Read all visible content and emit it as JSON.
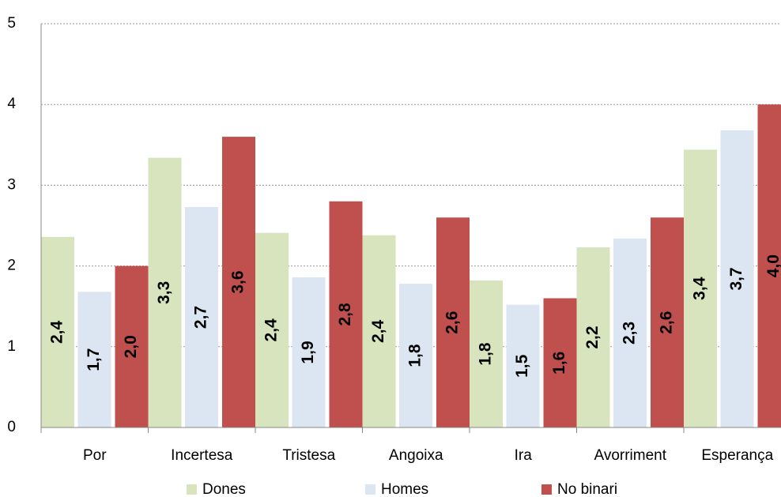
{
  "chart_data": {
    "type": "bar",
    "categories": [
      "Por",
      "Incertesa",
      "Tristesa",
      "Angoixa",
      "Ira",
      "Avorriment",
      "Esperança"
    ],
    "series": [
      {
        "name": "Dones",
        "color": "#d7e4bd",
        "values": [
          2.36,
          3.34,
          2.41,
          2.38,
          1.82,
          2.23,
          3.44
        ],
        "value_labels": [
          "2,4",
          "3,3",
          "2,4",
          "2,4",
          "1,8",
          "2,2",
          "3,4"
        ]
      },
      {
        "name": "Homes",
        "color": "#dce6f2",
        "values": [
          1.68,
          2.73,
          1.86,
          1.78,
          1.52,
          2.34,
          3.68
        ],
        "value_labels": [
          "1,7",
          "2,7",
          "1,9",
          "1,8",
          "1,5",
          "2,3",
          "3,7"
        ]
      },
      {
        "name": "No binari",
        "color": "#c0504d",
        "values": [
          2.0,
          3.6,
          2.8,
          2.6,
          1.6,
          2.6,
          4.0
        ],
        "value_labels": [
          "2,0",
          "3,6",
          "2,8",
          "2,6",
          "1,6",
          "2,6",
          "4,0"
        ]
      }
    ],
    "ylim": [
      0,
      5
    ],
    "yticks": [
      0,
      1,
      2,
      3,
      4,
      5
    ],
    "grid": true
  }
}
